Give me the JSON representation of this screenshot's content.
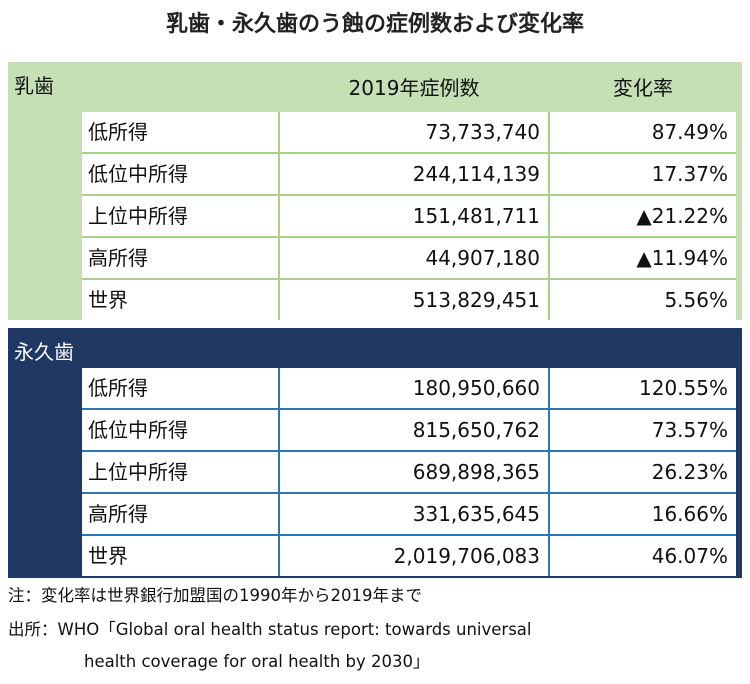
{
  "title": "乳歯・永久歯のう蝕の症例数および変化率",
  "sections": [
    {
      "label": "乳歯",
      "header": [
        "2019年症例数",
        "変化率"
      ],
      "rows": [
        [
          "低所得",
          "73,733,740",
          "87.49%"
        ],
        [
          "低位中所得",
          "244,114,139",
          "17.37%"
        ],
        [
          "上位中所得",
          "151,481,711",
          "▲21.22%"
        ],
        [
          "高所得",
          "44,907,180",
          "▲11.94%"
        ],
        [
          "世界",
          "513,829,451",
          "5.56%"
        ]
      ]
    },
    {
      "label": "永久歯",
      "rows": [
        [
          "低所得",
          "180,950,660",
          "120.55%"
        ],
        [
          "低位中所得",
          "815,650,762",
          "73.57%"
        ],
        [
          "上位中所得",
          "689,898,365",
          "26.23%"
        ],
        [
          "高所得",
          "331,635,645",
          "16.66%"
        ],
        [
          "世界",
          "2,019,706,083",
          "46.07%"
        ]
      ]
    }
  ],
  "notes": [
    "注：変化率は世界銀行加盟国の1990年から2019年まで",
    "出所：WHO「Global oral health status report: towards universal",
    "health coverage for oral health  by 2030」"
  ]
}
